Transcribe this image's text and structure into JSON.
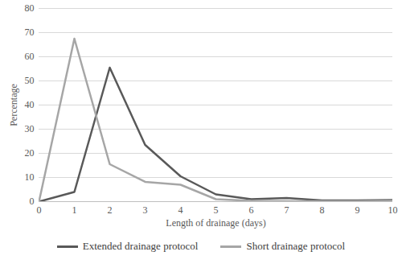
{
  "chart_data": {
    "type": "line",
    "x_label": "Length of drainage (days)",
    "y_label": "Percentage",
    "x": [
      0,
      1,
      2,
      3,
      4,
      5,
      6,
      7,
      8,
      9,
      10
    ],
    "series": [
      {
        "name": "Extended drainage protocol",
        "color": "#595959",
        "values": [
          0,
          4,
          55.5,
          23.5,
          10.5,
          3,
          1,
          1.5,
          0.5,
          0.5,
          0.7
        ]
      },
      {
        "name": "Short drainage protocol",
        "color": "#a6a6a6",
        "values": [
          0,
          67.5,
          15.5,
          8.2,
          7,
          1,
          0.3,
          0.2,
          0.2,
          0.2,
          0.3
        ]
      }
    ],
    "xlim": [
      0,
      10
    ],
    "xticks": [
      0,
      1,
      2,
      3,
      4,
      5,
      6,
      7,
      8,
      9,
      10
    ],
    "ylim": [
      0,
      80
    ],
    "yticks": [
      0,
      10,
      20,
      30,
      40,
      50,
      60,
      70,
      80
    ],
    "grid": true,
    "legend": "bottom"
  }
}
